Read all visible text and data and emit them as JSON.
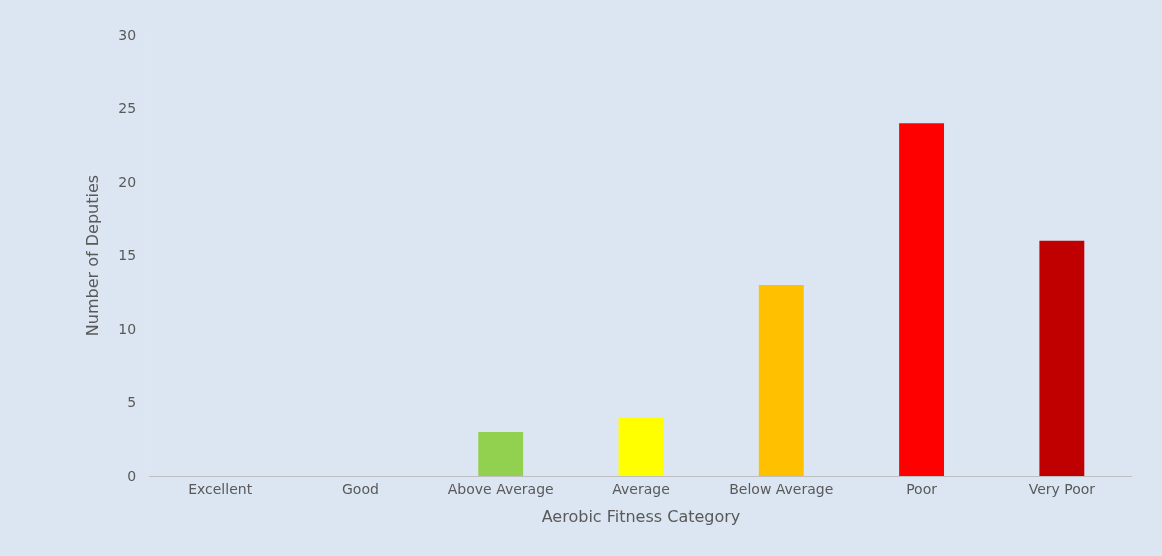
{
  "chart_data": {
    "type": "bar",
    "xlabel": "Aerobic Fitness Category",
    "ylabel": "Number of Deputies",
    "categories": [
      "Excellent",
      "Good",
      "Above Average",
      "Average",
      "Below Average",
      "Poor",
      "Very Poor"
    ],
    "values": [
      0,
      0,
      3,
      4,
      13,
      24,
      16
    ],
    "colors": [
      "#00b050",
      "#00b050",
      "#92d050",
      "#ffff00",
      "#ffc000",
      "#ff0000",
      "#c00000"
    ],
    "ylim": [
      0,
      30
    ],
    "yticks": [
      0,
      5,
      10,
      15,
      20,
      25,
      30
    ],
    "grid": false
  }
}
